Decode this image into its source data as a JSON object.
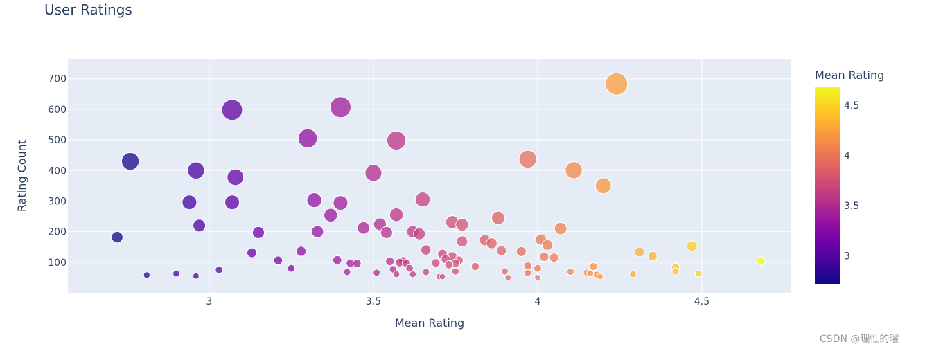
{
  "title": "User Ratings",
  "watermark": "CSDN @理性的曜",
  "chart_data": {
    "type": "scatter",
    "title": "User Ratings",
    "xlabel": "Mean Rating",
    "ylabel": "Rating Count",
    "xlim": [
      2.57,
      4.77
    ],
    "ylim": [
      0,
      765
    ],
    "xticks": [
      3,
      3.5,
      4,
      4.5
    ],
    "xtick_labels": [
      "3",
      "3.5",
      "4",
      "4.5"
    ],
    "yticks": [
      100,
      200,
      300,
      400,
      500,
      600,
      700
    ],
    "ytick_labels": [
      "100",
      "200",
      "300",
      "400",
      "500",
      "600",
      "700"
    ],
    "grid": true,
    "colorbar": {
      "title": "Mean Rating",
      "range": [
        2.72,
        4.68
      ],
      "ticks": [
        3,
        3.5,
        4,
        4.5
      ],
      "tick_labels": [
        "3",
        "3.5",
        "4",
        "4.5"
      ],
      "colorscale": [
        "#0d0887",
        "#46039f",
        "#7201a8",
        "#9c179e",
        "#bd3786",
        "#d8576b",
        "#ed7953",
        "#fb9f3a",
        "#fdca26",
        "#f0f921"
      ]
    },
    "marker": {
      "color_by": "x",
      "size_by": "y"
    },
    "points": [
      {
        "x": 2.72,
        "y": 182
      },
      {
        "x": 2.76,
        "y": 430
      },
      {
        "x": 2.81,
        "y": 58
      },
      {
        "x": 2.9,
        "y": 63
      },
      {
        "x": 2.94,
        "y": 296
      },
      {
        "x": 2.96,
        "y": 400
      },
      {
        "x": 2.96,
        "y": 55
      },
      {
        "x": 2.97,
        "y": 220
      },
      {
        "x": 3.03,
        "y": 75
      },
      {
        "x": 3.07,
        "y": 296
      },
      {
        "x": 3.07,
        "y": 598
      },
      {
        "x": 3.08,
        "y": 378
      },
      {
        "x": 3.13,
        "y": 131
      },
      {
        "x": 3.15,
        "y": 197
      },
      {
        "x": 3.21,
        "y": 106
      },
      {
        "x": 3.25,
        "y": 80
      },
      {
        "x": 3.28,
        "y": 136
      },
      {
        "x": 3.3,
        "y": 505
      },
      {
        "x": 3.32,
        "y": 303
      },
      {
        "x": 3.33,
        "y": 200
      },
      {
        "x": 3.37,
        "y": 254
      },
      {
        "x": 3.39,
        "y": 107
      },
      {
        "x": 3.4,
        "y": 294
      },
      {
        "x": 3.4,
        "y": 607
      },
      {
        "x": 3.42,
        "y": 68
      },
      {
        "x": 3.43,
        "y": 97
      },
      {
        "x": 3.45,
        "y": 96
      },
      {
        "x": 3.47,
        "y": 212
      },
      {
        "x": 3.5,
        "y": 392
      },
      {
        "x": 3.51,
        "y": 66
      },
      {
        "x": 3.52,
        "y": 224
      },
      {
        "x": 3.54,
        "y": 197
      },
      {
        "x": 3.55,
        "y": 103
      },
      {
        "x": 3.56,
        "y": 77
      },
      {
        "x": 3.57,
        "y": 61
      },
      {
        "x": 3.57,
        "y": 498
      },
      {
        "x": 3.57,
        "y": 255
      },
      {
        "x": 3.58,
        "y": 99
      },
      {
        "x": 3.59,
        "y": 104
      },
      {
        "x": 3.6,
        "y": 97
      },
      {
        "x": 3.61,
        "y": 80
      },
      {
        "x": 3.62,
        "y": 200
      },
      {
        "x": 3.62,
        "y": 61
      },
      {
        "x": 3.64,
        "y": 193
      },
      {
        "x": 3.65,
        "y": 305
      },
      {
        "x": 3.66,
        "y": 140
      },
      {
        "x": 3.66,
        "y": 68
      },
      {
        "x": 3.69,
        "y": 98
      },
      {
        "x": 3.7,
        "y": 53
      },
      {
        "x": 3.71,
        "y": 53
      },
      {
        "x": 3.71,
        "y": 127
      },
      {
        "x": 3.72,
        "y": 110
      },
      {
        "x": 3.73,
        "y": 92
      },
      {
        "x": 3.74,
        "y": 231
      },
      {
        "x": 3.74,
        "y": 119
      },
      {
        "x": 3.75,
        "y": 97
      },
      {
        "x": 3.75,
        "y": 70
      },
      {
        "x": 3.76,
        "y": 106
      },
      {
        "x": 3.77,
        "y": 223
      },
      {
        "x": 3.77,
        "y": 168
      },
      {
        "x": 3.81,
        "y": 86
      },
      {
        "x": 3.84,
        "y": 172
      },
      {
        "x": 3.86,
        "y": 162
      },
      {
        "x": 3.88,
        "y": 245
      },
      {
        "x": 3.89,
        "y": 138
      },
      {
        "x": 3.9,
        "y": 70
      },
      {
        "x": 3.91,
        "y": 50
      },
      {
        "x": 3.95,
        "y": 135
      },
      {
        "x": 3.97,
        "y": 88
      },
      {
        "x": 3.97,
        "y": 65
      },
      {
        "x": 3.97,
        "y": 437
      },
      {
        "x": 4.0,
        "y": 80
      },
      {
        "x": 4.0,
        "y": 50
      },
      {
        "x": 4.01,
        "y": 174
      },
      {
        "x": 4.02,
        "y": 118
      },
      {
        "x": 4.03,
        "y": 157
      },
      {
        "x": 4.05,
        "y": 115
      },
      {
        "x": 4.07,
        "y": 210
      },
      {
        "x": 4.1,
        "y": 69
      },
      {
        "x": 4.11,
        "y": 401
      },
      {
        "x": 4.15,
        "y": 66
      },
      {
        "x": 4.16,
        "y": 64
      },
      {
        "x": 4.17,
        "y": 86
      },
      {
        "x": 4.18,
        "y": 60
      },
      {
        "x": 4.19,
        "y": 53
      },
      {
        "x": 4.2,
        "y": 350
      },
      {
        "x": 4.24,
        "y": 683
      },
      {
        "x": 4.29,
        "y": 61
      },
      {
        "x": 4.31,
        "y": 134
      },
      {
        "x": 4.35,
        "y": 120
      },
      {
        "x": 4.42,
        "y": 84
      },
      {
        "x": 4.42,
        "y": 70
      },
      {
        "x": 4.47,
        "y": 153
      },
      {
        "x": 4.49,
        "y": 63
      },
      {
        "x": 4.68,
        "y": 104
      }
    ]
  }
}
